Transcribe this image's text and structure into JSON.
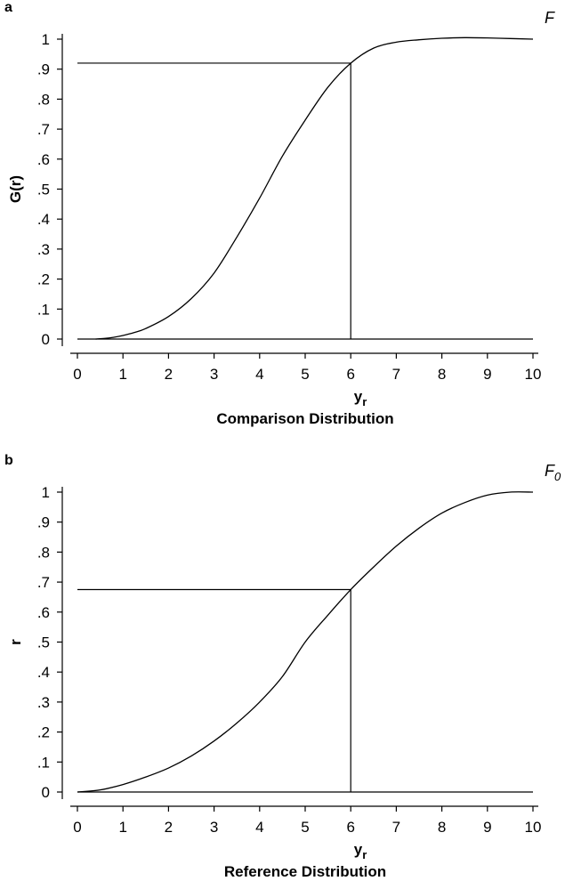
{
  "chart_data": [
    {
      "panel_label": "a",
      "type": "line",
      "curve_label": "F",
      "curve_label_sub": "",
      "ylabel": "G(r)",
      "xlabel": "y",
      "xlabel_sub": "r",
      "subtitle": "Comparison Distribution",
      "xlim": [
        0,
        10
      ],
      "ylim": [
        0,
        1
      ],
      "x_ticks": [
        "0",
        "1",
        "2",
        "3",
        "4",
        "5",
        "6",
        "7",
        "8",
        "9",
        "10"
      ],
      "y_ticks": [
        "0",
        ".1",
        ".2",
        ".3",
        ".4",
        ".5",
        ".6",
        ".7",
        ".8",
        ".9",
        "1"
      ],
      "series": [
        {
          "x": [
            0.4,
            0.6,
            0.8,
            1.0,
            1.25,
            1.5,
            2.0,
            2.5,
            3.0,
            3.5,
            4.0,
            4.5,
            5.0,
            5.5,
            6.0,
            6.5,
            7.0,
            7.5,
            8.0,
            8.5,
            9.0,
            9.5,
            10.0
          ],
          "y": [
            0.0,
            0.002,
            0.006,
            0.012,
            0.022,
            0.035,
            0.075,
            0.135,
            0.22,
            0.34,
            0.47,
            0.61,
            0.73,
            0.84,
            0.92,
            0.97,
            0.99,
            0.998,
            1.003,
            1.005,
            1.004,
            1.002,
            1.0
          ]
        }
      ],
      "reference_lines": {
        "x": 6,
        "y": 0.92,
        "baseline": 0
      }
    },
    {
      "panel_label": "b",
      "type": "line",
      "curve_label": "F",
      "curve_label_sub": "0",
      "ylabel": "r",
      "xlabel": "y",
      "xlabel_sub": "r",
      "subtitle": "Reference Distribution",
      "xlim": [
        0,
        10
      ],
      "ylim": [
        0,
        1
      ],
      "x_ticks": [
        "0",
        "1",
        "2",
        "3",
        "4",
        "5",
        "6",
        "7",
        "8",
        "9",
        "10"
      ],
      "y_ticks": [
        "0",
        ".1",
        ".2",
        ".3",
        ".4",
        ".5",
        ".6",
        ".7",
        ".8",
        ".9",
        "1"
      ],
      "series": [
        {
          "x": [
            0.0,
            0.5,
            1.0,
            1.5,
            2.0,
            2.5,
            3.0,
            3.5,
            4.0,
            4.5,
            5.0,
            5.5,
            6.0,
            6.5,
            7.0,
            7.5,
            8.0,
            8.5,
            9.0,
            9.5,
            10.0
          ],
          "y": [
            0.0,
            0.007,
            0.025,
            0.05,
            0.08,
            0.12,
            0.17,
            0.23,
            0.3,
            0.385,
            0.5,
            0.59,
            0.675,
            0.75,
            0.82,
            0.88,
            0.93,
            0.965,
            0.99,
            1.0,
            1.0
          ]
        }
      ],
      "reference_lines": {
        "x": 6,
        "y": 0.675,
        "baseline": 0
      }
    }
  ]
}
